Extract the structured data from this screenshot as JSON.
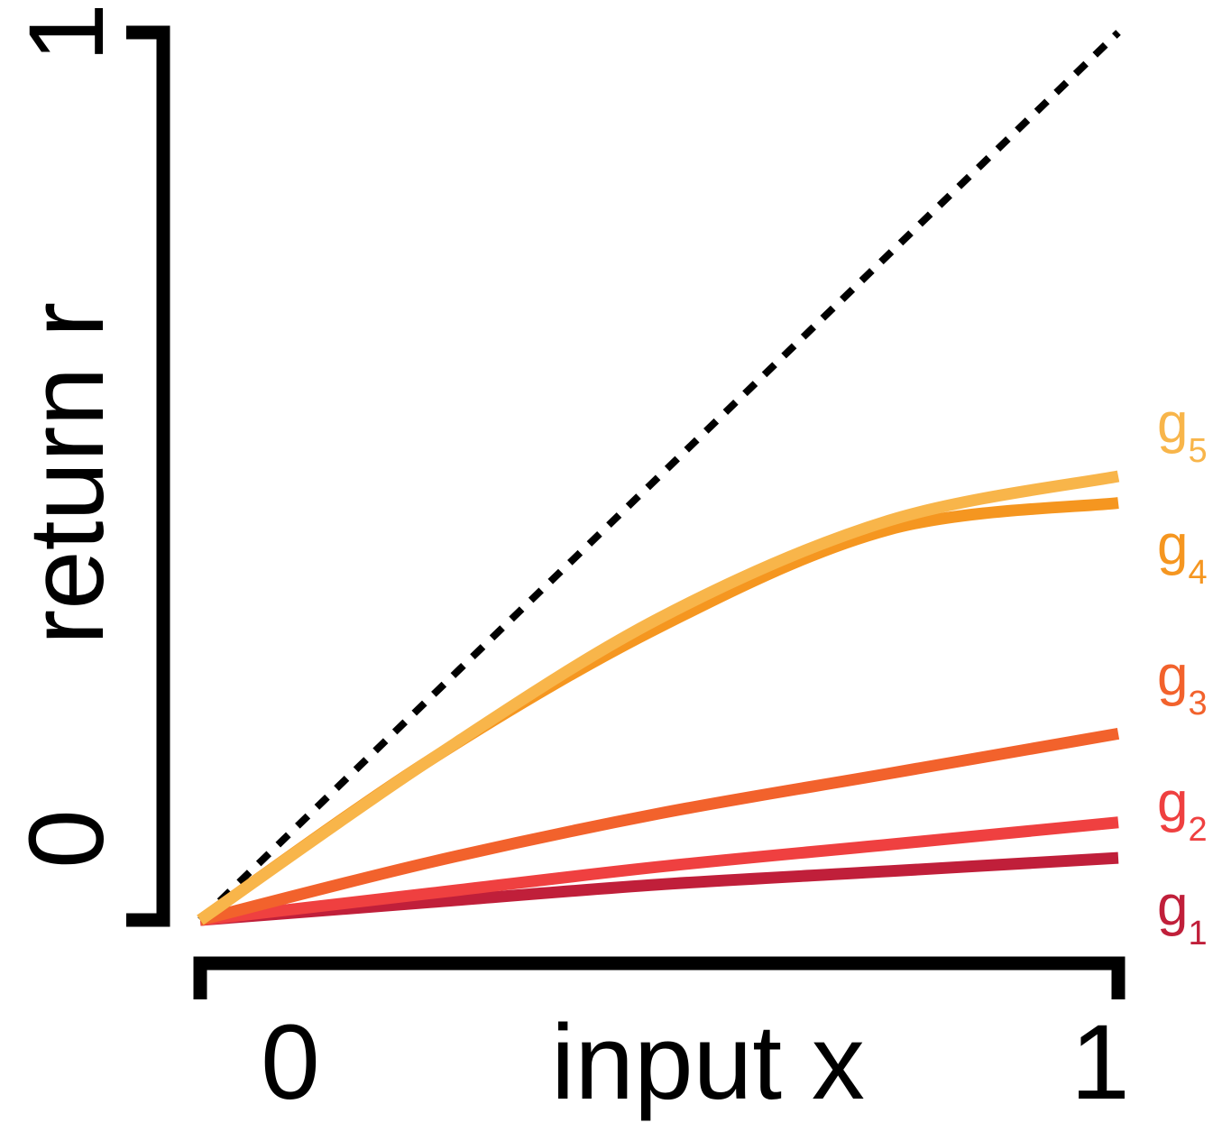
{
  "chart_data": {
    "type": "line",
    "xlabel": "input x",
    "ylabel": "return r",
    "xlim": [
      0,
      1
    ],
    "ylim": [
      0,
      1
    ],
    "x_ticks": [
      "0",
      "1"
    ],
    "y_ticks": [
      "0",
      "1"
    ],
    "grid": false,
    "legend": "labels at right end of each line",
    "reference_line": {
      "style": "dotted",
      "color": "#000000",
      "x": [
        0,
        1
      ],
      "y": [
        0,
        1
      ]
    },
    "series": [
      {
        "name": "g",
        "sub": "1",
        "color": "#c01f3a",
        "x": [
          0,
          0.25,
          0.5,
          0.75,
          1
        ],
        "y": [
          0,
          0.02,
          0.04,
          0.055,
          0.07
        ]
      },
      {
        "name": "g",
        "sub": "2",
        "color": "#ef4040",
        "x": [
          0,
          0.25,
          0.5,
          0.75,
          1
        ],
        "y": [
          0,
          0.03,
          0.06,
          0.085,
          0.11
        ]
      },
      {
        "name": "g",
        "sub": "3",
        "color": "#f2622c",
        "x": [
          0,
          0.25,
          0.5,
          0.75,
          1
        ],
        "y": [
          0,
          0.065,
          0.12,
          0.165,
          0.21
        ]
      },
      {
        "name": "g",
        "sub": "4",
        "color": "#f59620",
        "x": [
          0,
          0.25,
          0.5,
          0.75,
          1
        ],
        "y": [
          0,
          0.18,
          0.33,
          0.44,
          0.47
        ]
      },
      {
        "name": "g",
        "sub": "5",
        "color": "#f8b54a",
        "x": [
          0,
          0.25,
          0.5,
          0.75,
          1
        ],
        "y": [
          0,
          0.18,
          0.34,
          0.45,
          0.5
        ]
      }
    ]
  }
}
